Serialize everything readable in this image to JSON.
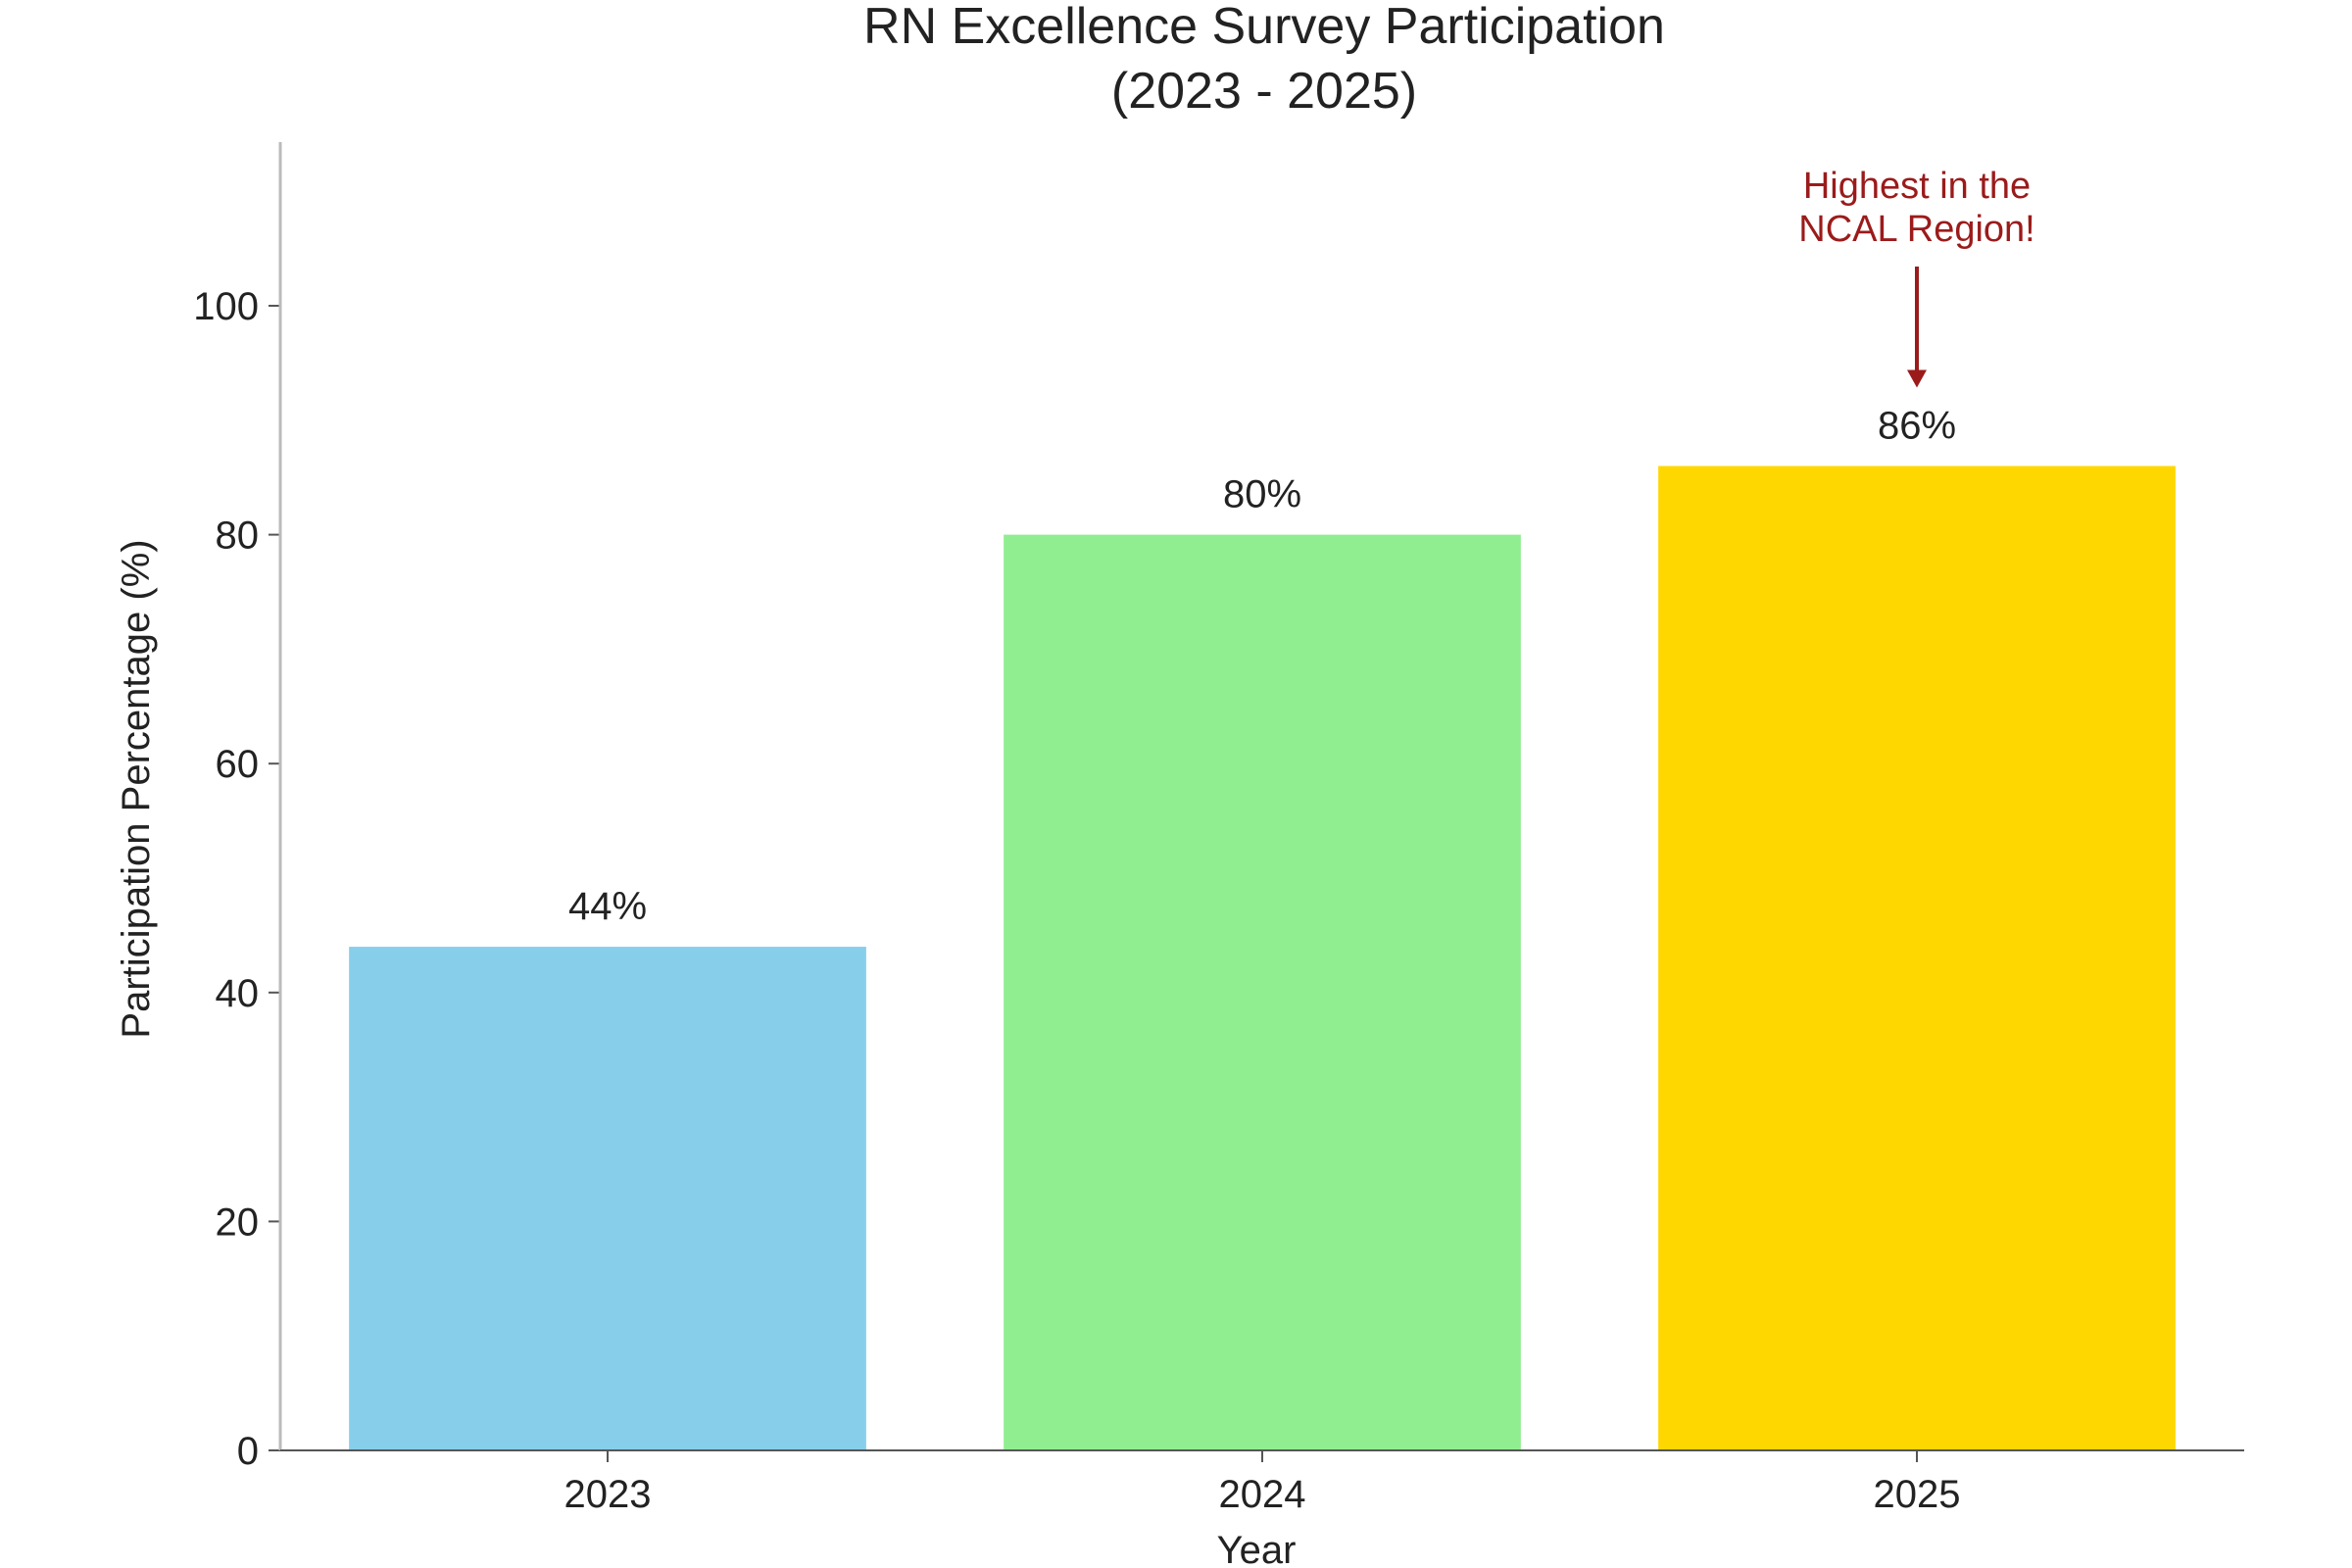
{
  "chart_data": {
    "type": "bar",
    "title": "RN Excellence Survey Participation",
    "subtitle": "(2023 - 2025)",
    "xlabel": "Year",
    "ylabel": "Participation Percentage (%)",
    "categories": [
      "2023",
      "2024",
      "2025"
    ],
    "values": [
      44,
      80,
      86
    ],
    "data_labels": [
      "44%",
      "80%",
      "86%"
    ],
    "colors": [
      "#87ceeb",
      "#90ee90",
      "#ffd700"
    ],
    "ylim": [
      0,
      114
    ],
    "yticks": [
      0,
      20,
      40,
      60,
      80,
      100
    ],
    "grid": false,
    "annotation": {
      "category": "2025",
      "lines": [
        "Highest in the",
        "NCAL Region!"
      ],
      "color": "#9b1b1b"
    }
  }
}
